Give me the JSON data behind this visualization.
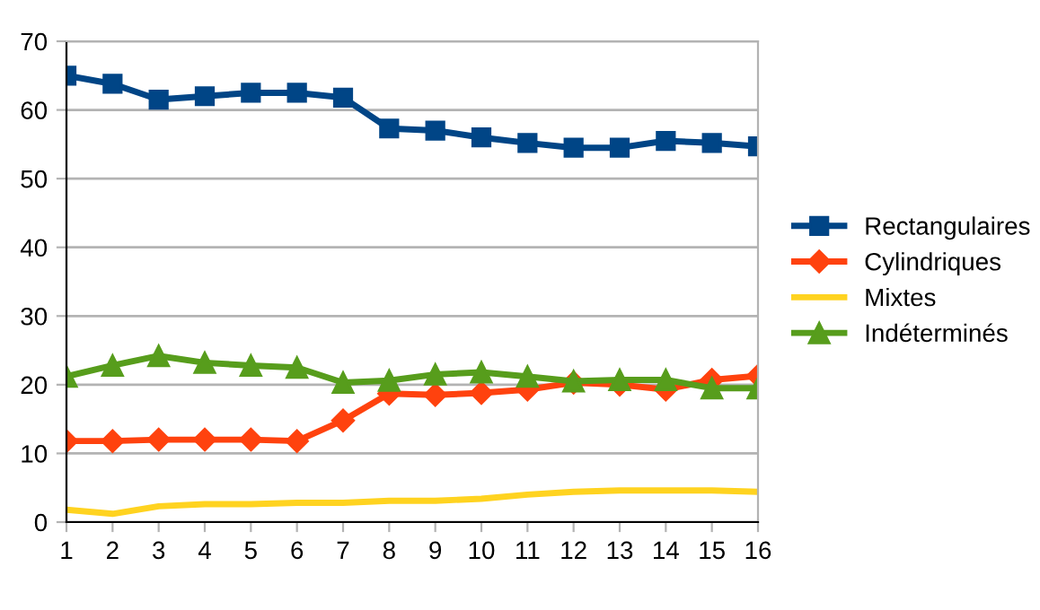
{
  "chart_data": {
    "type": "line",
    "categories": [
      "1",
      "2",
      "3",
      "4",
      "5",
      "6",
      "7",
      "8",
      "9",
      "10",
      "11",
      "12",
      "13",
      "14",
      "15",
      "16"
    ],
    "series": [
      {
        "name": "Rectangulaires",
        "color": "#004586",
        "marker": "square",
        "values": [
          65,
          63.8,
          61.5,
          62,
          62.5,
          62.5,
          61.8,
          57.3,
          57,
          56,
          55.2,
          54.5,
          54.5,
          55.5,
          55.2,
          54.7
        ]
      },
      {
        "name": "Cylindriques",
        "color": "#ff420e",
        "marker": "diamond",
        "values": [
          11.8,
          11.8,
          12,
          12,
          12,
          11.8,
          14.8,
          18.7,
          18.5,
          18.8,
          19.3,
          20.3,
          20,
          19.3,
          20.7,
          21.3
        ]
      },
      {
        "name": "Mixtes",
        "color": "#ffd320",
        "marker": "none",
        "values": [
          1.8,
          1.2,
          2.3,
          2.6,
          2.6,
          2.8,
          2.8,
          3.1,
          3.1,
          3.4,
          4,
          4.4,
          4.6,
          4.6,
          4.6,
          4.4
        ]
      },
      {
        "name": "Indéterminés",
        "color": "#579d1c",
        "marker": "triangle",
        "values": [
          21.2,
          22.8,
          24.2,
          23.2,
          22.8,
          22.5,
          20.3,
          20.6,
          21.5,
          21.8,
          21.2,
          20.5,
          20.7,
          20.7,
          19.5,
          19.5
        ]
      }
    ],
    "ylim": [
      0,
      70
    ],
    "yticks": [
      0,
      10,
      20,
      30,
      40,
      50,
      60,
      70
    ],
    "grid": "y",
    "legend": "right"
  }
}
